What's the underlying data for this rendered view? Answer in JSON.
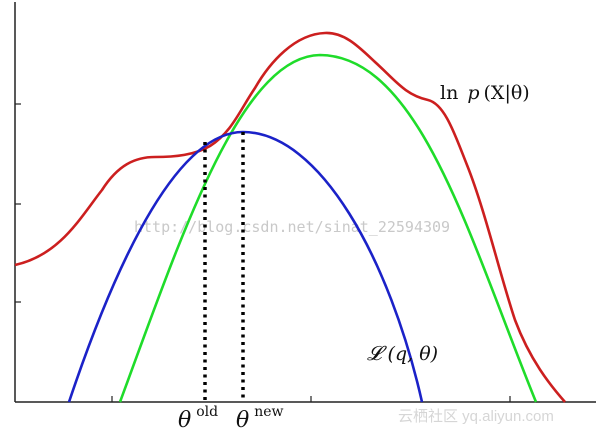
{
  "labels": {
    "log_likelihood": {
      "prefix": "ln",
      "func": "p",
      "body": "(X|θ)"
    },
    "lower_bound": {
      "script": "𝓛",
      "body": "(q, θ)"
    },
    "theta_old": {
      "base": "θ",
      "sup": "old"
    },
    "theta_new": {
      "base": "θ",
      "sup": "new"
    }
  },
  "watermark_text": "http://blog.csdn.net/sinat_22594309",
  "brand_text": "云栖社区 yq.aliyun.com",
  "colors": {
    "log_likelihood": "#cc1f1f",
    "lower_bound_old": "#1b22c8",
    "lower_bound_new": "#1fdc2a",
    "axis": "#222222",
    "guide": "#000000"
  }
}
